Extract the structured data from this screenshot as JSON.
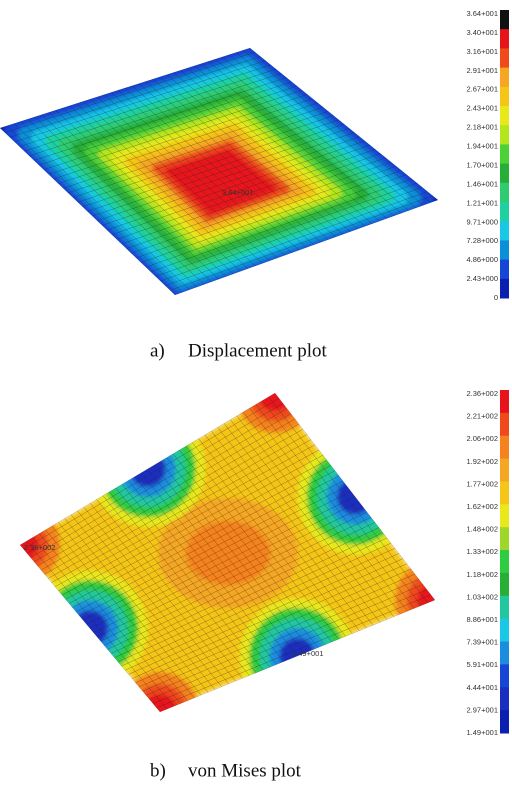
{
  "panels": [
    {
      "caption_label": "a)",
      "caption": "Displacement plot",
      "legend_labels": [
        "3.64+001",
        "3.40+001",
        "3.16+001",
        "2.91+001",
        "2.67+001",
        "2.43+001",
        "2.18+001",
        "1.94+001",
        "1.70+001",
        "1.46+001",
        "1.21+001",
        "9.71+000",
        "7.28+000",
        "4.86+000",
        "2.43+000",
        "0"
      ],
      "legend_colors": [
        "#111111",
        "#e8141c",
        "#f04a1a",
        "#f5a623",
        "#f5c518",
        "#e8e81a",
        "#b5e61d",
        "#4cd137",
        "#27ae37",
        "#2ecc71",
        "#1fd1a0",
        "#19c8e6",
        "#0a8fd8",
        "#1746d6",
        "#0b1fb0"
      ],
      "plot_labels": [
        "3.64+001"
      ]
    },
    {
      "caption_label": "b)",
      "caption": "von Mises plot",
      "legend_labels": [
        "2.36+002",
        "2.21+002",
        "2.06+002",
        "1.92+002",
        "1.77+002",
        "1.62+002",
        "1.48+002",
        "1.33+002",
        "1.18+002",
        "1.03+002",
        "8.86+001",
        "7.39+001",
        "5.91+001",
        "4.44+001",
        "2.97+001",
        "1.49+001"
      ],
      "legend_colors": [
        "#e8141c",
        "#f04a1a",
        "#f5821f",
        "#f5a623",
        "#f5c518",
        "#e8e81a",
        "#9fd62a",
        "#2ecc40",
        "#27ae37",
        "#22c7a0",
        "#19c8e6",
        "#1b8de0",
        "#1746d6",
        "#1a2fc0",
        "#0b1fb0"
      ],
      "plot_labels": [
        "2.36+002",
        "1.49+001"
      ]
    }
  ]
}
